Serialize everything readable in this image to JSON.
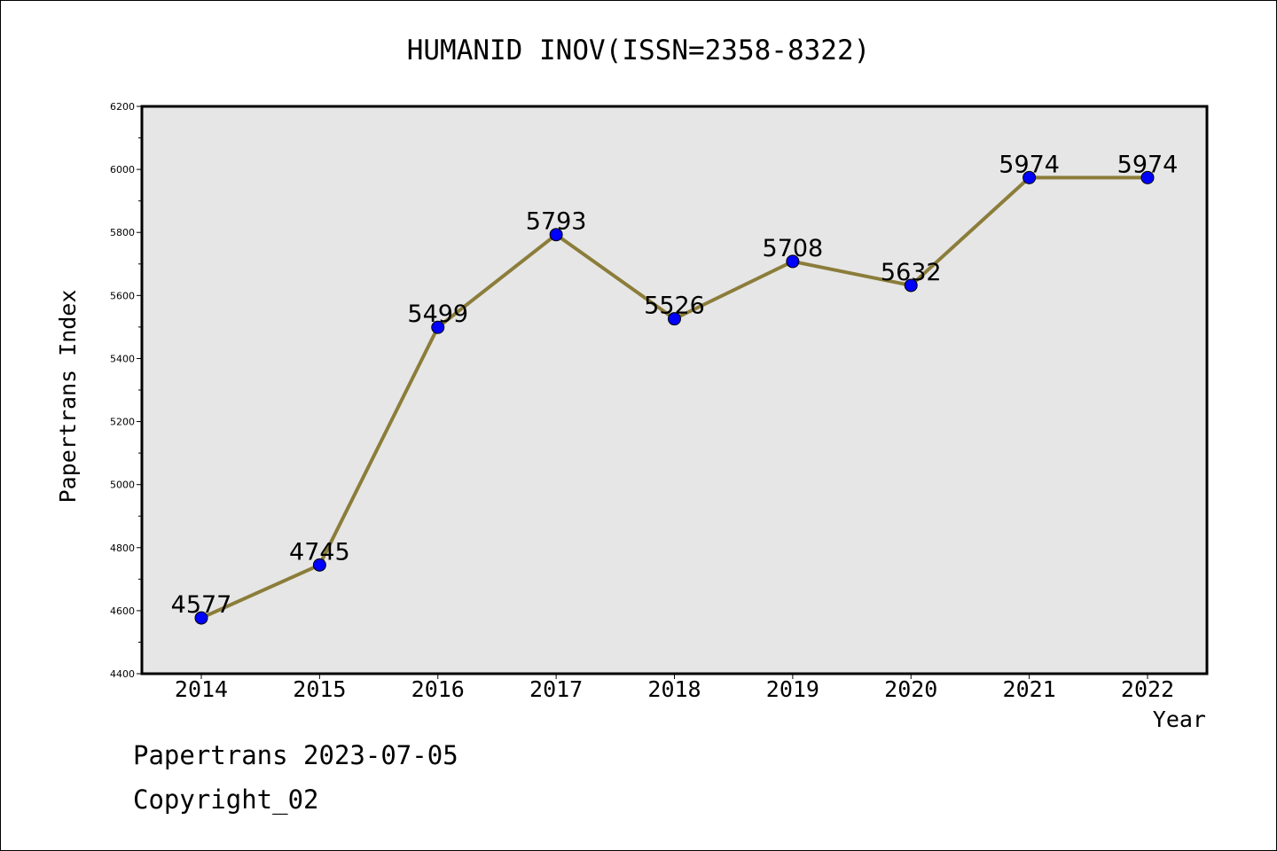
{
  "chart_data": {
    "type": "line",
    "title": "HUMANID INOV(ISSN=2358-8322)",
    "xlabel": "Year",
    "ylabel": "Papertrans Index",
    "categories": [
      "2014",
      "2015",
      "2016",
      "2017",
      "2018",
      "2019",
      "2020",
      "2021",
      "2022"
    ],
    "values": [
      4577,
      4745,
      5499,
      5793,
      5526,
      5708,
      5632,
      5974,
      5974
    ],
    "ylim": [
      4400,
      6200
    ],
    "yticks": [
      "4400",
      "4600",
      "4800",
      "5000",
      "5200",
      "5400",
      "5600",
      "5800",
      "6000",
      "6200"
    ],
    "data_labels": [
      "4577",
      "4745",
      "5499",
      "5793",
      "5526",
      "5708",
      "5632",
      "5974",
      "5974"
    ],
    "grid": false,
    "plot_background": "#e6e6e6",
    "line_color": "#8b7d3a",
    "marker_color": "#0000ff"
  },
  "footer": {
    "line1": "Papertrans 2023-07-05",
    "line2": "Copyright_02"
  }
}
